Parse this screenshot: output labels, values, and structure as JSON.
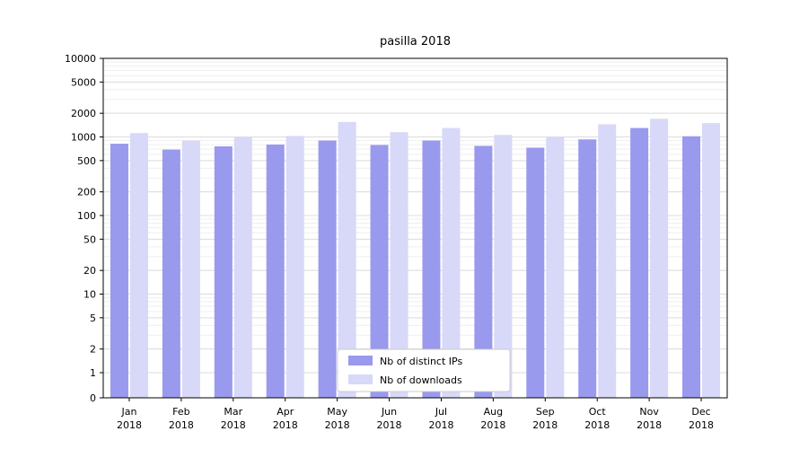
{
  "chart_data": {
    "type": "bar",
    "title": "pasilla 2018",
    "scale": "symlog",
    "grid": true,
    "legend_position": "bottom-center",
    "categories": [
      "Jan",
      "Feb",
      "Mar",
      "Apr",
      "May",
      "Jun",
      "Jul",
      "Aug",
      "Sep",
      "Oct",
      "Nov",
      "Dec"
    ],
    "x_year": "2018",
    "yticks": [
      0,
      1,
      2,
      5,
      10,
      20,
      50,
      100,
      200,
      500,
      1000,
      2000,
      5000,
      10000
    ],
    "ylim": [
      0,
      10000
    ],
    "series": [
      {
        "name": "Nb of distinct IPs",
        "color": "#9999ee",
        "values": [
          820,
          690,
          760,
          800,
          900,
          790,
          900,
          770,
          730,
          930,
          1300,
          1020
        ]
      },
      {
        "name": "Nb of downloads",
        "color": "#d8d8f8",
        "values": [
          1120,
          900,
          1000,
          1030,
          1550,
          1150,
          1300,
          1060,
          1010,
          1450,
          1700,
          1500
        ]
      }
    ]
  }
}
